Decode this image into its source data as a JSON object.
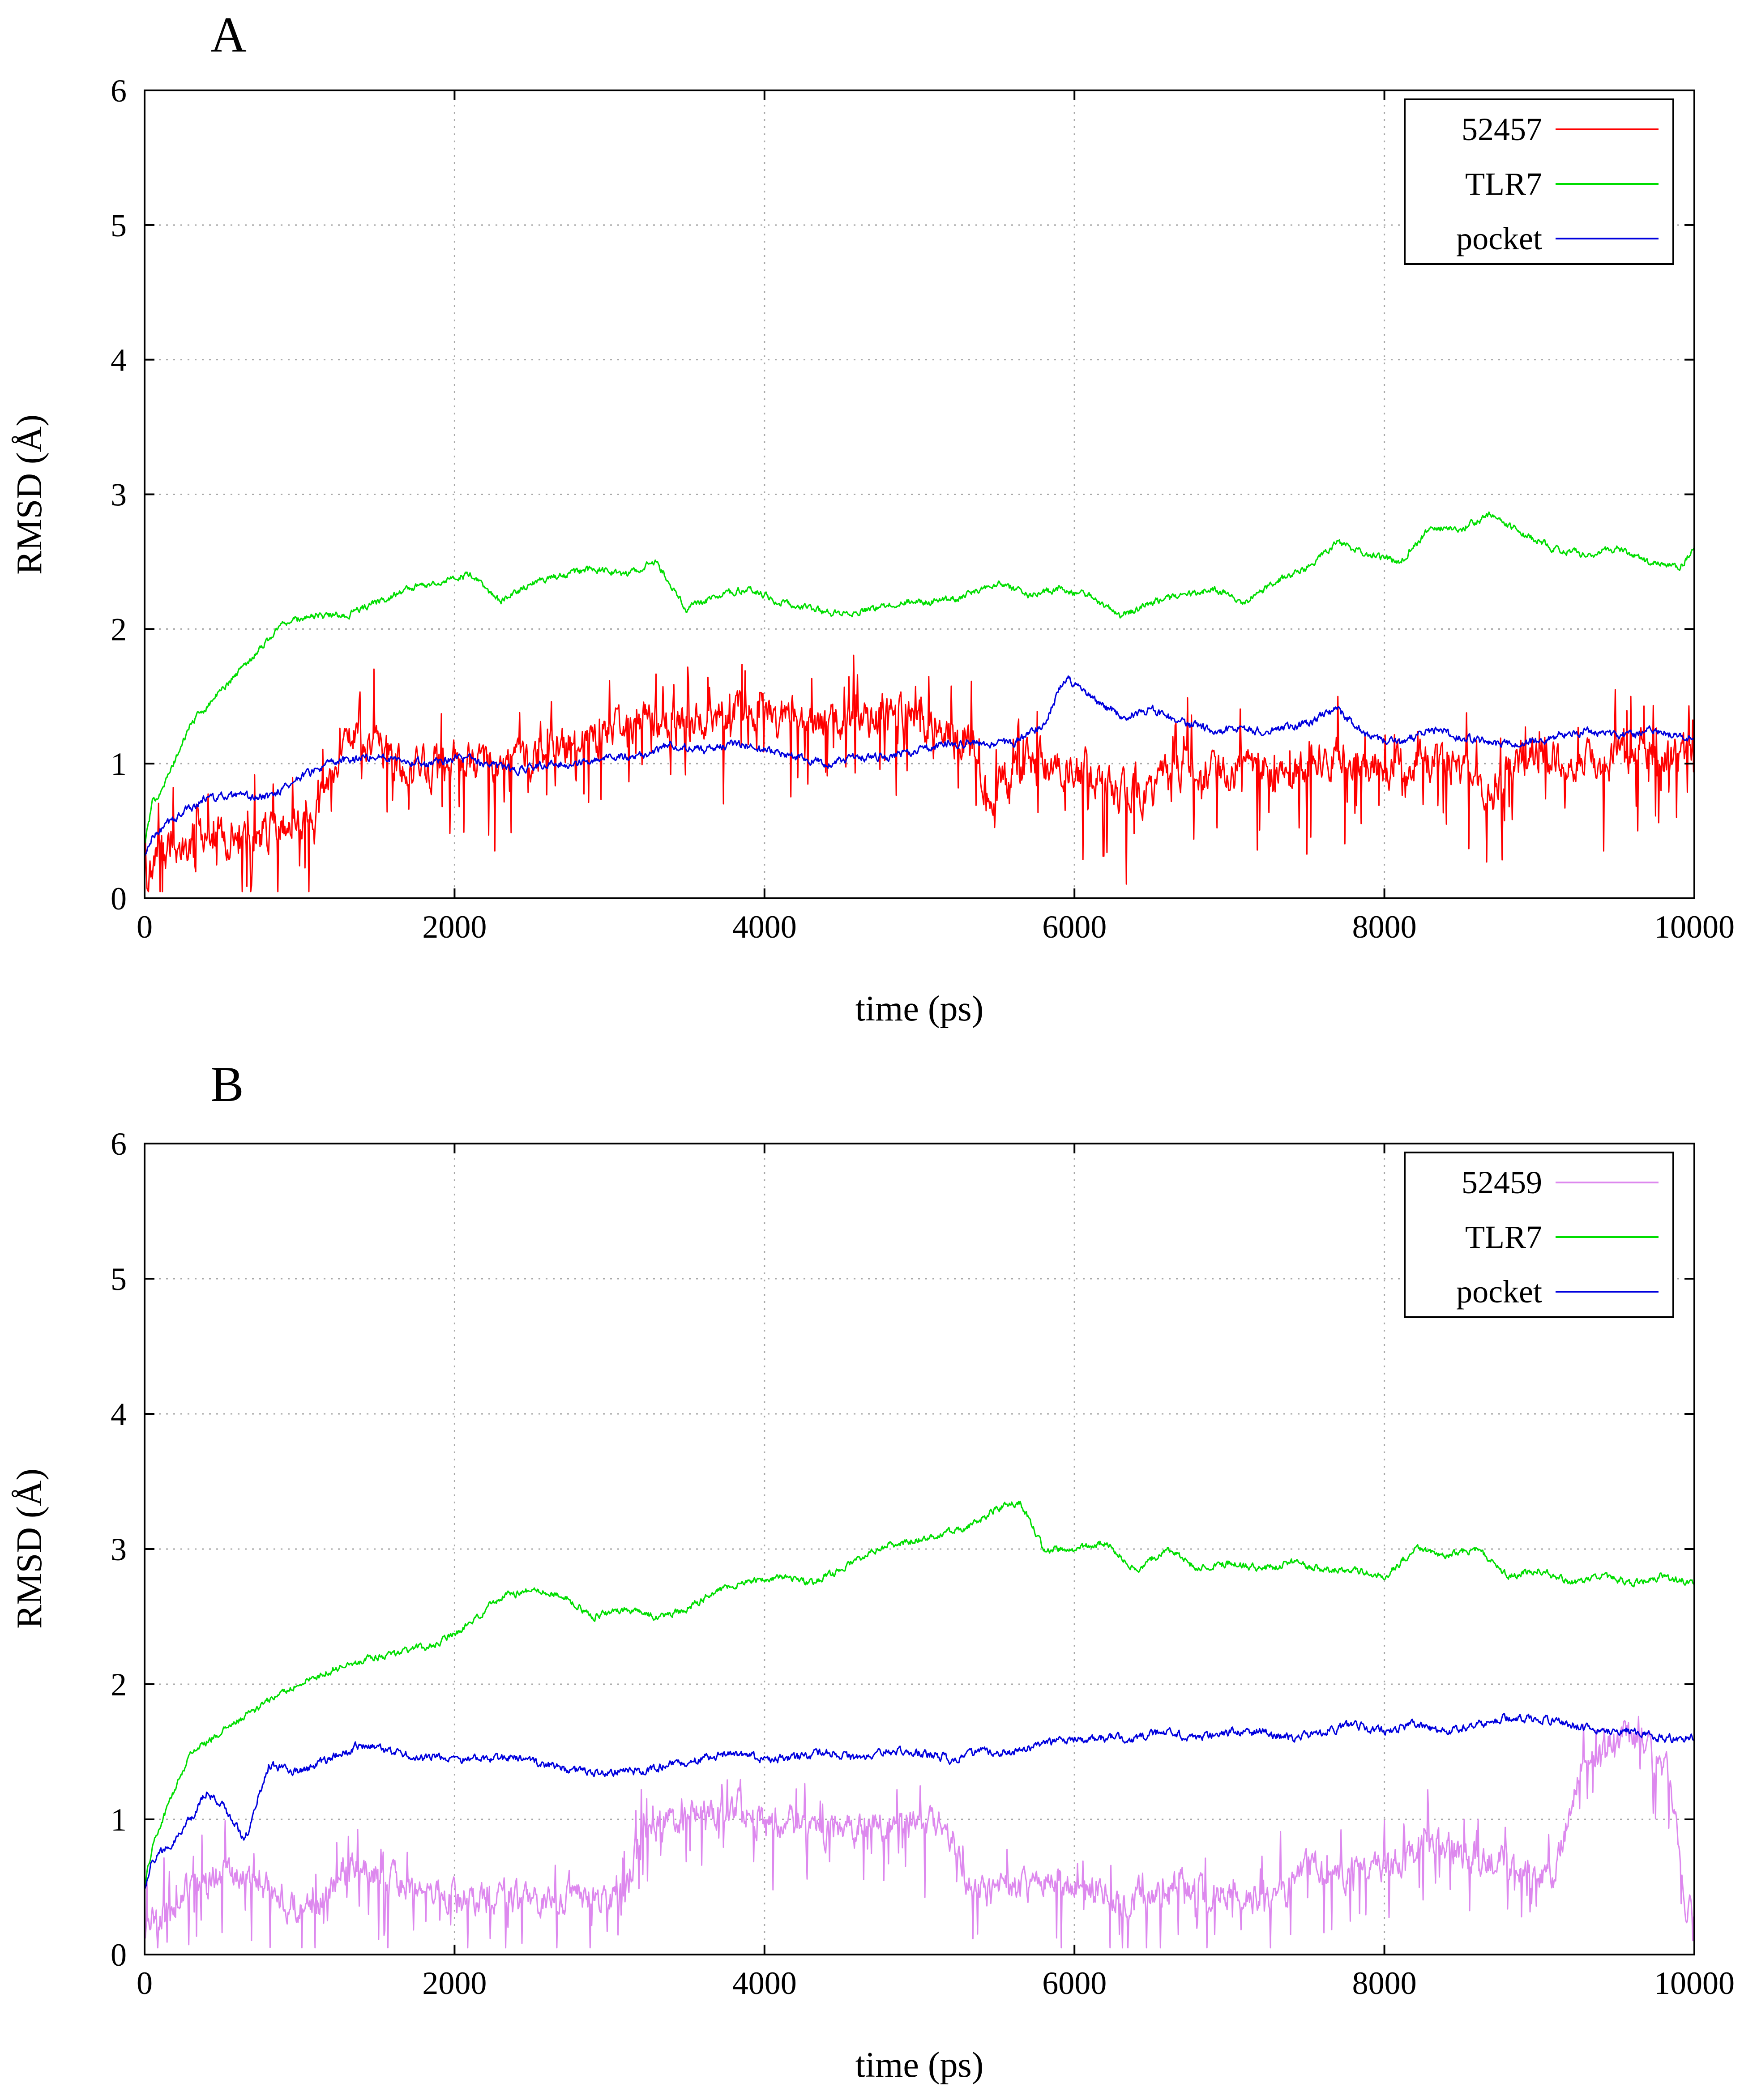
{
  "chart_data": [
    {
      "type": "line",
      "panel_label": "A",
      "xlabel": "time (ps)",
      "ylabel": "RMSD (Å)",
      "xlim": [
        0,
        10000
      ],
      "ylim": [
        0,
        6
      ],
      "xticks": [
        0,
        2000,
        4000,
        6000,
        8000,
        10000
      ],
      "yticks": [
        0,
        1,
        2,
        3,
        4,
        5,
        6
      ],
      "grid": true,
      "legend_position": "top-right",
      "series": [
        {
          "name": "52457",
          "color": "#ff0000",
          "noise": 0.28,
          "x": [
            0,
            100,
            300,
            500,
            700,
            900,
            1100,
            1200,
            1300,
            1500,
            1700,
            1900,
            2100,
            2300,
            2500,
            2700,
            2900,
            3100,
            3300,
            3500,
            3700,
            3900,
            4100,
            4300,
            4500,
            4700,
            4900,
            5100,
            5300,
            5400,
            5500,
            5700,
            5900,
            6100,
            6300,
            6500,
            6700,
            6900,
            7100,
            7300,
            7500,
            7700,
            7900,
            8100,
            8300,
            8500,
            8700,
            8900,
            9100,
            9300,
            9500,
            9700,
            9900,
            10000
          ],
          "values": [
            0.15,
            0.3,
            0.45,
            0.5,
            0.45,
            0.55,
            0.6,
            0.9,
            1.2,
            1.15,
            0.95,
            1.0,
            1.05,
            0.95,
            1.05,
            1.15,
            1.2,
            1.25,
            1.35,
            1.35,
            1.35,
            1.38,
            1.35,
            1.3,
            1.3,
            1.35,
            1.35,
            1.3,
            1.25,
            0.9,
            0.8,
            1.0,
            1.0,
            0.95,
            0.75,
            0.8,
            1.0,
            0.9,
            1.0,
            0.95,
            1.0,
            1.05,
            1.0,
            1.0,
            1.05,
            1.0,
            0.8,
            1.05,
            1.05,
            1.0,
            1.05,
            1.1,
            1.0,
            1.05
          ]
        },
        {
          "name": "TLR7",
          "color": "#00dd00",
          "noise": 0.05,
          "x": [
            0,
            50,
            150,
            300,
            500,
            700,
            900,
            1100,
            1300,
            1500,
            1700,
            1900,
            2100,
            2300,
            2500,
            2700,
            2900,
            3100,
            3300,
            3500,
            3700,
            3900,
            4100,
            4300,
            4500,
            4700,
            4900,
            5100,
            5300,
            5500,
            5700,
            5900,
            6100,
            6300,
            6500,
            6700,
            6900,
            7100,
            7300,
            7500,
            7700,
            7900,
            8100,
            8300,
            8500,
            8700,
            8900,
            9100,
            9300,
            9500,
            9700,
            9900,
            10000
          ],
          "values": [
            0.4,
            0.7,
            0.9,
            1.3,
            1.55,
            1.8,
            2.05,
            2.1,
            2.1,
            2.2,
            2.3,
            2.35,
            2.4,
            2.2,
            2.35,
            2.4,
            2.45,
            2.4,
            2.5,
            2.15,
            2.25,
            2.3,
            2.2,
            2.15,
            2.1,
            2.15,
            2.2,
            2.2,
            2.25,
            2.35,
            2.25,
            2.3,
            2.25,
            2.1,
            2.2,
            2.25,
            2.3,
            2.2,
            2.35,
            2.45,
            2.65,
            2.55,
            2.5,
            2.75,
            2.75,
            2.85,
            2.7,
            2.6,
            2.55,
            2.6,
            2.5,
            2.45,
            2.6
          ]
        },
        {
          "name": "pocket",
          "color": "#0000dd",
          "noise": 0.06,
          "x": [
            0,
            50,
            200,
            400,
            600,
            800,
            1000,
            1200,
            1400,
            1600,
            1800,
            2000,
            2200,
            2400,
            2600,
            2800,
            3000,
            3200,
            3400,
            3600,
            3800,
            4000,
            4200,
            4400,
            4600,
            4800,
            5000,
            5200,
            5400,
            5600,
            5800,
            5950,
            6100,
            6300,
            6500,
            6700,
            6900,
            7100,
            7300,
            7500,
            7700,
            7900,
            8100,
            8300,
            8500,
            8700,
            8900,
            9100,
            9300,
            9500,
            9700,
            9900,
            10000
          ],
          "values": [
            0.3,
            0.45,
            0.6,
            0.75,
            0.75,
            0.75,
            0.9,
            1.0,
            1.05,
            1.05,
            1.0,
            1.05,
            1.0,
            0.95,
            1.0,
            1.0,
            1.05,
            1.05,
            1.15,
            1.1,
            1.15,
            1.1,
            1.05,
            1.0,
            1.05,
            1.05,
            1.1,
            1.15,
            1.15,
            1.15,
            1.3,
            1.65,
            1.5,
            1.35,
            1.4,
            1.3,
            1.25,
            1.25,
            1.25,
            1.3,
            1.4,
            1.2,
            1.15,
            1.25,
            1.2,
            1.15,
            1.15,
            1.2,
            1.25,
            1.2,
            1.25,
            1.2,
            1.2
          ]
        }
      ]
    },
    {
      "type": "line",
      "panel_label": "B",
      "xlabel": "time (ps)",
      "ylabel": "RMSD (Å)",
      "xlim": [
        0,
        10000
      ],
      "ylim": [
        0,
        6
      ],
      "xticks": [
        0,
        2000,
        4000,
        6000,
        8000,
        10000
      ],
      "yticks": [
        0,
        1,
        2,
        3,
        4,
        5,
        6
      ],
      "grid": true,
      "legend_position": "top-right",
      "series": [
        {
          "name": "52459",
          "color": "#dd88ee",
          "noise": 0.22,
          "x": [
            0,
            100,
            300,
            500,
            700,
            900,
            1100,
            1300,
            1500,
            1700,
            1900,
            2100,
            2300,
            2500,
            2700,
            2900,
            3100,
            3200,
            3400,
            3600,
            3800,
            4000,
            4200,
            4400,
            4600,
            4800,
            5000,
            5200,
            5300,
            5500,
            5700,
            5900,
            6100,
            6300,
            6500,
            6700,
            6900,
            7100,
            7300,
            7500,
            7700,
            7900,
            8100,
            8300,
            8500,
            8700,
            8900,
            9100,
            9300,
            9500,
            9700,
            9850,
            9950,
            10000
          ],
          "values": [
            0.2,
            0.3,
            0.5,
            0.6,
            0.55,
            0.4,
            0.35,
            0.7,
            0.6,
            0.5,
            0.45,
            0.4,
            0.45,
            0.4,
            0.4,
            0.45,
            0.4,
            0.9,
            1.0,
            1.05,
            1.1,
            1.0,
            0.95,
            0.9,
            0.95,
            0.95,
            1.0,
            0.9,
            0.55,
            0.45,
            0.5,
            0.55,
            0.5,
            0.4,
            0.45,
            0.5,
            0.5,
            0.45,
            0.4,
            0.65,
            0.6,
            0.65,
            0.7,
            0.85,
            0.75,
            0.7,
            0.6,
            0.6,
            1.5,
            1.6,
            1.55,
            1.3,
            0.35,
            0.3
          ]
        },
        {
          "name": "TLR7",
          "color": "#00dd00",
          "noise": 0.05,
          "x": [
            0,
            50,
            150,
            300,
            500,
            700,
            900,
            1100,
            1300,
            1500,
            1700,
            1900,
            2100,
            2300,
            2500,
            2700,
            2900,
            3100,
            3300,
            3500,
            3700,
            3900,
            4100,
            4300,
            4500,
            4700,
            4900,
            5100,
            5300,
            5500,
            5650,
            5800,
            6000,
            6200,
            6400,
            6600,
            6800,
            7000,
            7200,
            7400,
            7600,
            7800,
            8000,
            8200,
            8400,
            8600,
            8800,
            9000,
            9200,
            9400,
            9600,
            9800,
            10000
          ],
          "values": [
            0.5,
            0.8,
            1.1,
            1.5,
            1.65,
            1.8,
            1.95,
            2.05,
            2.15,
            2.2,
            2.25,
            2.3,
            2.45,
            2.65,
            2.7,
            2.65,
            2.5,
            2.55,
            2.5,
            2.55,
            2.7,
            2.75,
            2.8,
            2.75,
            2.85,
            3.0,
            3.05,
            3.1,
            3.15,
            3.3,
            3.35,
            3.0,
            3.0,
            3.05,
            2.85,
            3.0,
            2.85,
            2.9,
            2.85,
            2.9,
            2.85,
            2.85,
            2.8,
            3.0,
            2.95,
            3.0,
            2.8,
            2.85,
            2.75,
            2.8,
            2.75,
            2.8,
            2.75
          ]
        },
        {
          "name": "pocket",
          "color": "#0000dd",
          "noise": 0.06,
          "x": [
            0,
            50,
            150,
            300,
            400,
            500,
            650,
            800,
            1000,
            1200,
            1400,
            1600,
            1800,
            2000,
            2200,
            2400,
            2600,
            2800,
            3000,
            3200,
            3400,
            3600,
            3800,
            4000,
            4200,
            4400,
            4600,
            4800,
            5000,
            5200,
            5400,
            5600,
            5800,
            6000,
            6200,
            6400,
            6600,
            6800,
            7000,
            7200,
            7400,
            7600,
            7800,
            8000,
            8200,
            8400,
            8600,
            8800,
            9000,
            9200,
            9400,
            9600,
            9800,
            10000
          ],
          "values": [
            0.5,
            0.7,
            0.8,
            1.0,
            1.2,
            1.1,
            0.85,
            1.4,
            1.35,
            1.45,
            1.55,
            1.5,
            1.45,
            1.45,
            1.45,
            1.45,
            1.4,
            1.35,
            1.35,
            1.35,
            1.4,
            1.45,
            1.5,
            1.45,
            1.45,
            1.5,
            1.45,
            1.5,
            1.5,
            1.45,
            1.5,
            1.5,
            1.55,
            1.6,
            1.6,
            1.6,
            1.65,
            1.6,
            1.65,
            1.65,
            1.6,
            1.65,
            1.7,
            1.65,
            1.7,
            1.65,
            1.7,
            1.75,
            1.75,
            1.7,
            1.65,
            1.65,
            1.6,
            1.6
          ]
        }
      ]
    }
  ]
}
